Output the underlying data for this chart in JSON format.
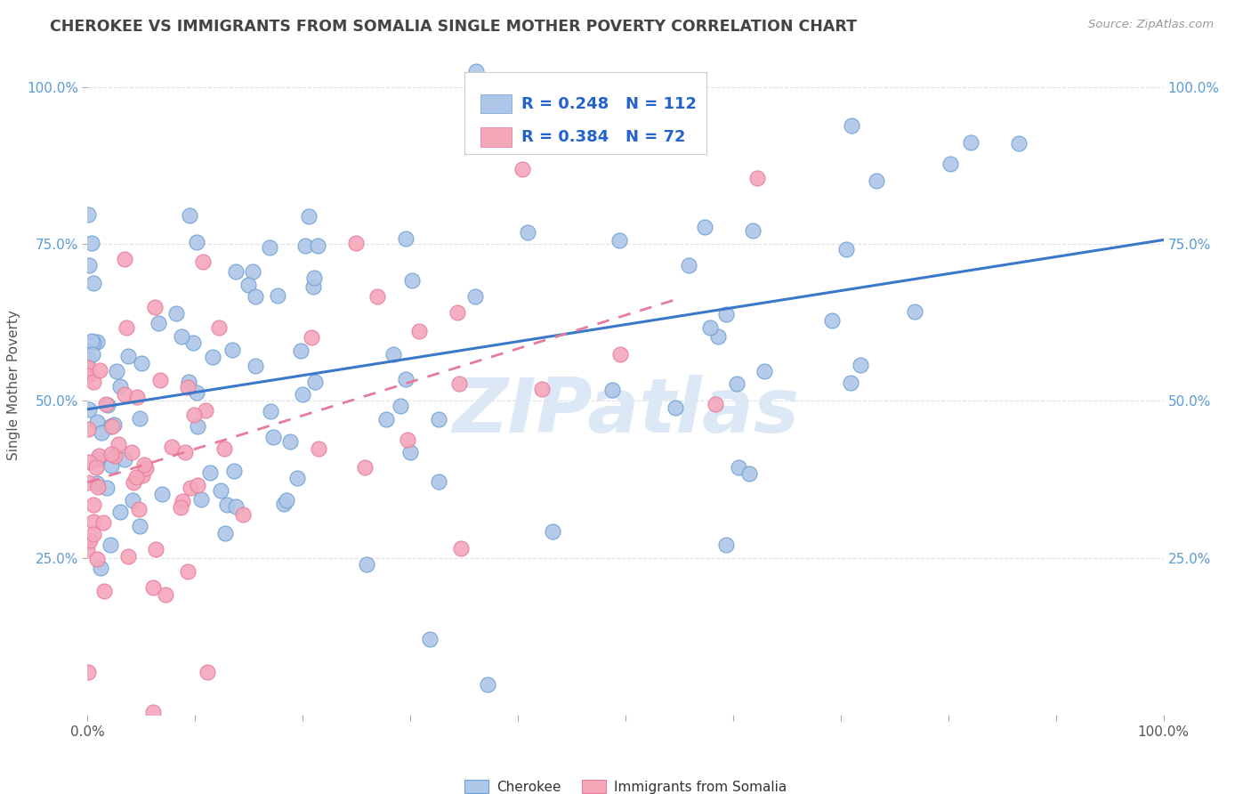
{
  "title": "CHEROKEE VS IMMIGRANTS FROM SOMALIA SINGLE MOTHER POVERTY CORRELATION CHART",
  "source": "Source: ZipAtlas.com",
  "ylabel": "Single Mother Poverty",
  "ytick_positions": [
    0.25,
    0.5,
    0.75,
    1.0
  ],
  "ytick_labels": [
    "25.0%",
    "50.0%",
    "75.0%",
    "100.0%"
  ],
  "xtick_labels_left": "0.0%",
  "xtick_labels_right": "100.0%",
  "legend_label1": "Cherokee",
  "legend_label2": "Immigrants from Somalia",
  "legend_R1": "R = 0.248",
  "legend_N1": "N = 112",
  "legend_R2": "R = 0.384",
  "legend_N2": "N = 72",
  "color_blue_fill": "#aec6e8",
  "color_blue_edge": "#6ca0d4",
  "color_pink_fill": "#f4a7b9",
  "color_pink_edge": "#e87a9a",
  "color_line_blue": "#3a78c9",
  "color_line_pink": "#e87a9a",
  "color_watermark": "#dce8f5",
  "color_ytick": "#5b9bd5",
  "color_title": "#444444",
  "color_source": "#999999",
  "color_grid": "#e0e0e0",
  "color_legend_text": "#333333",
  "color_legend_rn": "#2563cc",
  "watermark_text": "ZIPatlas",
  "background_color": "#ffffff",
  "xlim": [
    0.0,
    1.0
  ],
  "ylim": [
    0.0,
    1.05
  ],
  "R1": 0.248,
  "N1": 112,
  "R2": 0.384,
  "N2": 72,
  "seed1": 42,
  "seed2": 7
}
